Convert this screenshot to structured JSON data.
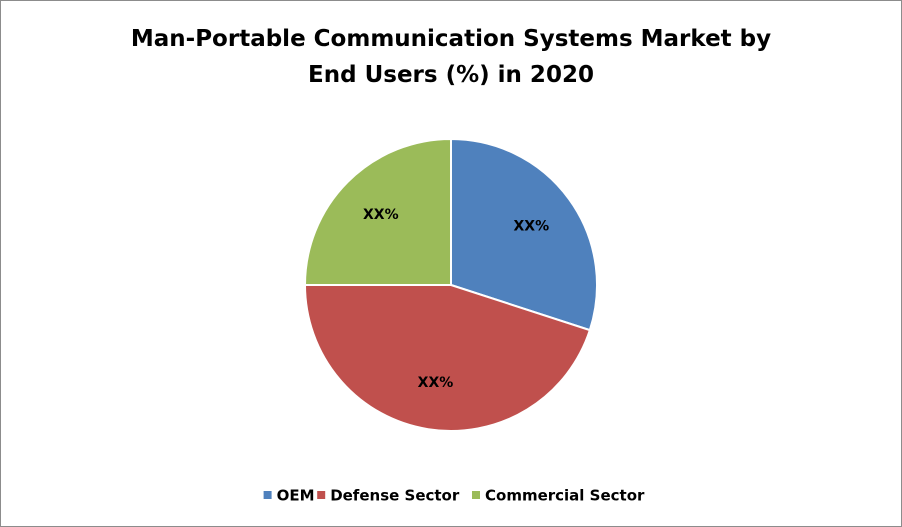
{
  "chart_data": {
    "type": "pie",
    "title": "Man-Portable Communication Systems Market by End Users (%) in 2020",
    "categories": [
      "OEM",
      "Defense Sector",
      "Commercial Sector"
    ],
    "values": [
      30,
      45,
      25
    ],
    "value_labels": [
      "XX%",
      "XX%",
      "XX%"
    ],
    "colors": [
      "#4f81bd",
      "#c0504d",
      "#9bbb59"
    ],
    "legend": "bottom"
  }
}
